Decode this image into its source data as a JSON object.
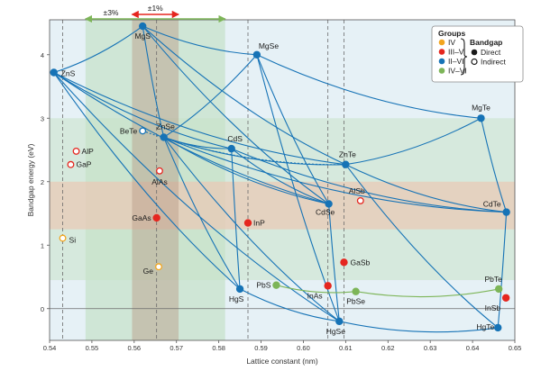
{
  "chart_data": {
    "type": "scatter",
    "xlabel": "Lattice constant (nm)",
    "ylabel": "Bandgap energy (eV)",
    "xlim": [
      0.54,
      0.65
    ],
    "ylim": [
      -0.5,
      4.55
    ],
    "x_ticks": [
      "0.54",
      "0.55",
      "0.56",
      "0.57",
      "0.58",
      "0.59",
      "0.60",
      "0.61",
      "0.62",
      "0.63",
      "0.64",
      "0.65"
    ],
    "x_tick_values": [
      0.54,
      0.55,
      0.56,
      0.57,
      0.58,
      0.59,
      0.6,
      0.61,
      0.62,
      0.63,
      0.64,
      0.65
    ],
    "y_ticks": [
      "0",
      "1",
      "2",
      "3",
      "4"
    ],
    "y_tick_values": [
      0,
      1,
      2,
      3,
      4
    ],
    "colors": {
      "IV": "#f2a51e",
      "III-V": "#e5261f",
      "II-VI": "#1673b6",
      "IV-VI": "#7db558"
    },
    "points": [
      {
        "name": "ZnS",
        "x": 0.541,
        "y": 3.72,
        "group": "II-VI",
        "type": "Direct"
      },
      {
        "name": "MgS",
        "x": 0.562,
        "y": 4.45,
        "group": "II-VI",
        "type": "Direct"
      },
      {
        "name": "MgSe",
        "x": 0.589,
        "y": 4.0,
        "group": "II-VI",
        "type": "Direct"
      },
      {
        "name": "BeTe",
        "x": 0.562,
        "y": 2.8,
        "group": "II-VI",
        "type": "Indirect"
      },
      {
        "name": "ZnSe",
        "x": 0.567,
        "y": 2.7,
        "group": "II-VI",
        "type": "Direct"
      },
      {
        "name": "CdS",
        "x": 0.583,
        "y": 2.52,
        "group": "II-VI",
        "type": "Direct"
      },
      {
        "name": "ZnTe",
        "x": 0.61,
        "y": 2.27,
        "group": "II-VI",
        "type": "Direct"
      },
      {
        "name": "MgTe",
        "x": 0.642,
        "y": 3.0,
        "group": "II-VI",
        "type": "Direct"
      },
      {
        "name": "CdSe",
        "x": 0.606,
        "y": 1.65,
        "group": "II-VI",
        "type": "Direct"
      },
      {
        "name": "CdTe",
        "x": 0.648,
        "y": 1.52,
        "group": "II-VI",
        "type": "Direct"
      },
      {
        "name": "HgS",
        "x": 0.585,
        "y": 0.31,
        "group": "II-VI",
        "type": "Direct"
      },
      {
        "name": "HgSe",
        "x": 0.6085,
        "y": -0.2,
        "group": "II-VI",
        "type": "Direct"
      },
      {
        "name": "HgTe",
        "x": 0.646,
        "y": -0.3,
        "group": "II-VI",
        "type": "Direct"
      },
      {
        "name": "AlP",
        "x": 0.5463,
        "y": 2.48,
        "group": "III-V",
        "type": "Indirect"
      },
      {
        "name": "GaP",
        "x": 0.545,
        "y": 2.27,
        "group": "III-V",
        "type": "Indirect"
      },
      {
        "name": "AlAs",
        "x": 0.566,
        "y": 2.17,
        "group": "III-V",
        "type": "Indirect"
      },
      {
        "name": "AlSb",
        "x": 0.6135,
        "y": 1.7,
        "group": "III-V",
        "type": "Indirect"
      },
      {
        "name": "GaAs",
        "x": 0.5653,
        "y": 1.43,
        "group": "III-V",
        "type": "Direct"
      },
      {
        "name": "InP",
        "x": 0.5869,
        "y": 1.35,
        "group": "III-V",
        "type": "Direct"
      },
      {
        "name": "GaSb",
        "x": 0.6096,
        "y": 0.73,
        "group": "III-V",
        "type": "Direct"
      },
      {
        "name": "InAs",
        "x": 0.6058,
        "y": 0.36,
        "group": "III-V",
        "type": "Direct"
      },
      {
        "name": "InSb",
        "x": 0.6479,
        "y": 0.17,
        "group": "III-V",
        "type": "Direct"
      },
      {
        "name": "Si",
        "x": 0.5431,
        "y": 1.11,
        "group": "IV",
        "type": "Indirect"
      },
      {
        "name": "Ge",
        "x": 0.5658,
        "y": 0.66,
        "group": "IV",
        "type": "Indirect"
      },
      {
        "name": "PbS",
        "x": 0.5936,
        "y": 0.37,
        "group": "IV-VI",
        "type": "Direct"
      },
      {
        "name": "PbSe",
        "x": 0.6124,
        "y": 0.27,
        "group": "IV-VI",
        "type": "Direct"
      },
      {
        "name": "PbTe",
        "x": 0.6462,
        "y": 0.31,
        "group": "IV-VI",
        "type": "Direct"
      }
    ],
    "curves": [
      [
        "ZnS",
        "MgS"
      ],
      [
        "ZnS",
        "CdS"
      ],
      [
        "ZnS",
        "ZnTe"
      ],
      [
        "ZnS",
        "HgS"
      ],
      [
        "ZnS",
        "CdSe"
      ],
      [
        "ZnS",
        "HgSe"
      ],
      [
        "MgS",
        "MgSe"
      ],
      [
        "MgS",
        "ZnSe"
      ],
      [
        "MgS",
        "CdSe"
      ],
      [
        "MgS",
        "ZnTe"
      ],
      [
        "MgSe",
        "ZnSe"
      ],
      [
        "MgSe",
        "CdSe"
      ],
      [
        "MgSe",
        "MgTe"
      ],
      [
        "MgSe",
        "HgSe"
      ],
      [
        "ZnSe",
        "CdS"
      ],
      [
        "ZnSe",
        "ZnTe"
      ],
      [
        "ZnSe",
        "CdSe"
      ],
      [
        "ZnSe",
        "CdTe"
      ],
      [
        "ZnSe",
        "HgSe"
      ],
      [
        "ZnSe",
        "HgS"
      ],
      [
        "CdS",
        "HgS"
      ],
      [
        "CdS",
        "CdSe"
      ],
      [
        "CdS",
        "CdTe"
      ],
      [
        "ZnTe",
        "CdTe"
      ],
      [
        "ZnTe",
        "MgTe"
      ],
      [
        "ZnTe",
        "HgTe"
      ],
      [
        "MgTe",
        "CdTe"
      ],
      [
        "CdTe",
        "HgTe"
      ],
      [
        "CdSe",
        "HgSe"
      ],
      [
        "HgSe",
        "HgTe"
      ],
      [
        "HgS",
        "HgSe"
      ],
      [
        "PbS",
        "PbSe"
      ],
      [
        "PbSe",
        "PbTe"
      ]
    ],
    "dashed_curves": [
      [
        "BeTe",
        "ZnTe"
      ]
    ],
    "mismatch_markers": [
      {
        "label": "±3%",
        "from": 0.5485,
        "to": 0.5815
      },
      {
        "label": "±1%",
        "from": 0.5595,
        "to": 0.5705
      }
    ],
    "vertical_reference_lines": [
      0.5431,
      0.5653,
      0.5869,
      0.6058,
      0.6096
    ],
    "legend": {
      "groups_title": "Groups",
      "groups": [
        "IV",
        "III–V",
        "II–VI",
        "IV–VI"
      ],
      "bandgap_title": "Bandgap",
      "bandgap": [
        "Direct",
        "Indirect"
      ]
    }
  }
}
